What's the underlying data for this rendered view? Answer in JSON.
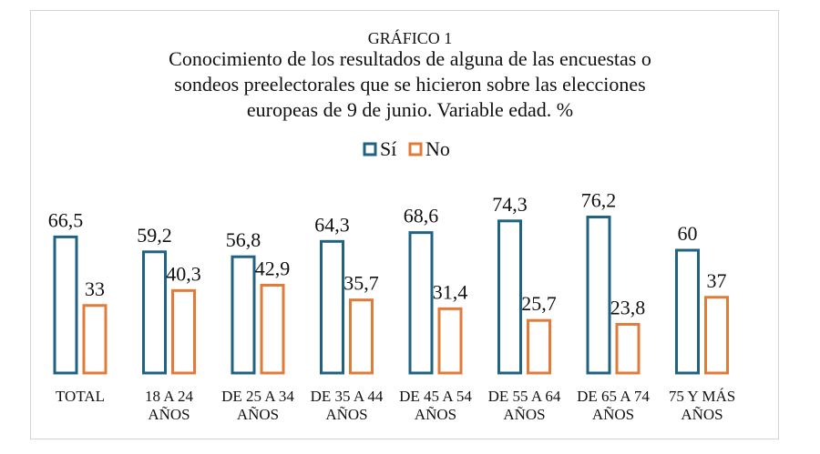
{
  "chart_data": {
    "type": "bar",
    "title_lines": [
      "GRÁFICO 1",
      "Conocimiento de los resultados de alguna de las encuestas o",
      "sondeos preelectorales  que se hicieron sobre las elecciones",
      "europeas de 9 de junio. Variable edad. %"
    ],
    "categories": [
      [
        "TOTAL"
      ],
      [
        "18 A 24",
        "AÑOS"
      ],
      [
        "DE 25 A 34",
        "AÑOS"
      ],
      [
        "DE 35 A 44",
        "AÑOS"
      ],
      [
        "DE 45 A 54",
        "AÑOS"
      ],
      [
        "DE 55 A 64",
        "AÑOS"
      ],
      [
        "DE 65 A 74",
        "AÑOS"
      ],
      [
        "75 Y MÁS",
        "AÑOS"
      ]
    ],
    "series": [
      {
        "name": "Sí",
        "color": "#1f6282",
        "values": [
          66.5,
          59.2,
          56.8,
          64.3,
          68.6,
          74.3,
          76.2,
          60
        ],
        "labels": [
          "66,5",
          "59,2",
          "56,8",
          "64,3",
          "68,6",
          "74,3",
          "76,2",
          "60"
        ]
      },
      {
        "name": "No",
        "color": "#e07b39",
        "values": [
          33,
          40.3,
          42.9,
          35.7,
          31.4,
          25.7,
          23.8,
          37
        ],
        "labels": [
          "33",
          "40,3",
          "42,9",
          "35,7",
          "31,4",
          "25,7",
          "23,8",
          "37"
        ]
      }
    ],
    "ylim": [
      0,
      100
    ],
    "grid": false,
    "legend": "top-center",
    "bar_style": "outlined"
  }
}
